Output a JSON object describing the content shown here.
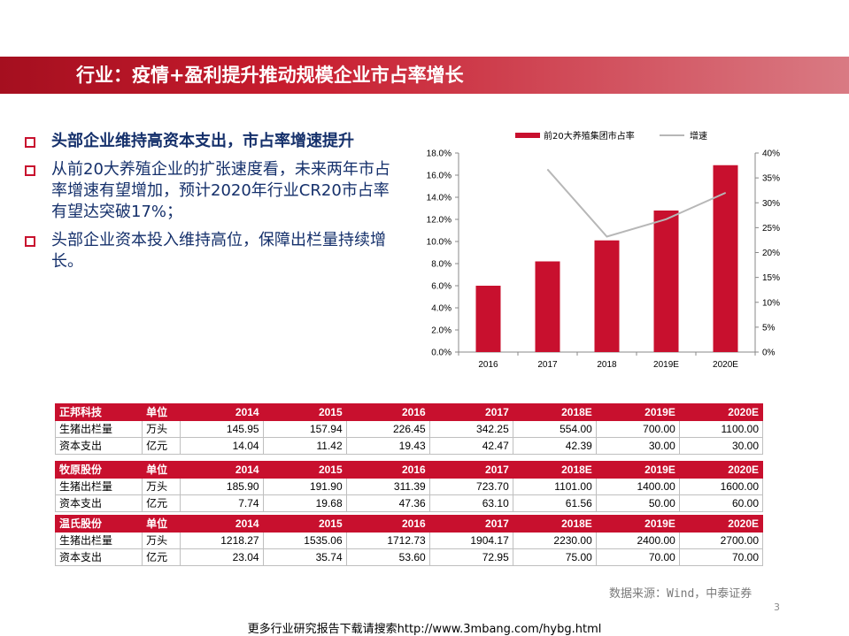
{
  "slide": {
    "title": "行业：疫情+盈利提升推动规模企业市占率增长",
    "bullets": [
      {
        "text": "头部企业维持高资本支出，市占率增速提升",
        "bold": true
      },
      {
        "text": "从前20大养殖企业的扩张速度看，未来两年市占率增速有望增加，预计2020年行业CR20市占率有望达突破17%；",
        "bold": false
      },
      {
        "text": "头部企业资本投入维持高位，保障出栏量持续增长。",
        "bold": false
      }
    ],
    "source": "数据来源：Wind，中泰证券",
    "page_number": "3",
    "footer": "更多行业研究报告下载请搜索http://www.3mbang.com/hybg.html"
  },
  "chart_data": {
    "type": "bar",
    "categories": [
      "2016",
      "2017",
      "2018",
      "2019E",
      "2020E"
    ],
    "series": [
      {
        "name": "前20大养殖集团市占率",
        "type": "bar",
        "axis": "left",
        "color": "#c8102e",
        "values": [
          6.0,
          8.2,
          10.1,
          12.8,
          16.9
        ]
      },
      {
        "name": "增速",
        "type": "line",
        "axis": "right",
        "color": "#b7b7b7",
        "values": [
          null,
          36.7,
          23.2,
          26.7,
          32.0
        ]
      }
    ],
    "y_left": {
      "min": 0,
      "max": 18,
      "ticks": [
        "0.0%",
        "2.0%",
        "4.0%",
        "6.0%",
        "8.0%",
        "10.0%",
        "12.0%",
        "14.0%",
        "16.0%",
        "18.0%"
      ]
    },
    "y_right": {
      "min": 0,
      "max": 40,
      "ticks": [
        "0%",
        "5%",
        "10%",
        "15%",
        "20%",
        "25%",
        "30%",
        "35%",
        "40%"
      ]
    },
    "legend_position": "top",
    "grid": false
  },
  "tables": [
    {
      "header": [
        "正邦科技",
        "单位",
        "2014",
        "2015",
        "2016",
        "2017",
        "2018E",
        "2019E",
        "2020E"
      ],
      "rows": [
        [
          "生猪出栏量",
          "万头",
          "145.95",
          "157.94",
          "226.45",
          "342.25",
          "554.00",
          "700.00",
          "1100.00"
        ],
        [
          "资本支出",
          "亿元",
          "14.04",
          "11.42",
          "19.43",
          "42.47",
          "42.39",
          "30.00",
          "30.00"
        ]
      ]
    },
    {
      "header": [
        "牧原股份",
        "单位",
        "2014",
        "2015",
        "2016",
        "2017",
        "2018E",
        "2019E",
        "2020E"
      ],
      "rows": [
        [
          "生猪出栏量",
          "万头",
          "185.90",
          "191.90",
          "311.39",
          "723.70",
          "1101.00",
          "1400.00",
          "1600.00"
        ],
        [
          "资本支出",
          "亿元",
          "7.74",
          "19.68",
          "47.36",
          "63.10",
          "61.56",
          "50.00",
          "60.00"
        ]
      ]
    },
    {
      "header": [
        "温氏股份",
        "单位",
        "2014",
        "2015",
        "2016",
        "2017",
        "2018E",
        "2019E",
        "2020E"
      ],
      "rows": [
        [
          "生猪出栏量",
          "万头",
          "1218.27",
          "1535.06",
          "1712.73",
          "1904.17",
          "2230.00",
          "2400.00",
          "2700.00"
        ],
        [
          "资本支出",
          "亿元",
          "23.04",
          "35.74",
          "53.60",
          "72.95",
          "75.00",
          "70.00",
          "70.00"
        ]
      ]
    }
  ]
}
